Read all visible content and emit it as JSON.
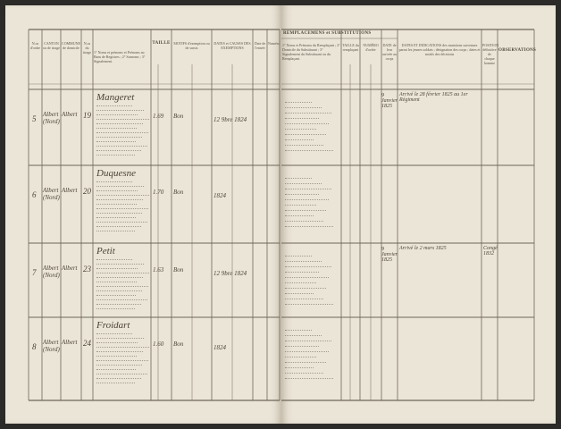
{
  "left_page": {
    "headers": [
      {
        "key": "no",
        "text": "N.os d'ordre"
      },
      {
        "key": "canton",
        "text": "CANTON ou de tirage"
      },
      {
        "key": "commune",
        "text": "COMMUNE de domicile"
      },
      {
        "key": "tirage",
        "text": "N.os du tirage"
      },
      {
        "key": "noms",
        "text": "1° Noms et prénoms et Prénoms au Bans de Registres ; 2° Surnoms ; 3° Signalement."
      },
      {
        "key": "taille",
        "text": "TAILLE"
      },
      {
        "key": "motifs",
        "text": "MOTIFS d'exemption ou de sursis"
      },
      {
        "key": "dates",
        "text": "DATES et CAUSES DES EXEMPTIONS"
      },
      {
        "key": "c1",
        "text": "Date de l'entrée"
      },
      {
        "key": "c2",
        "text": "Numéro"
      }
    ],
    "rows": [
      {
        "number": "5",
        "canton": "Albert (Nord)",
        "commune": "Albert",
        "tirage": "19",
        "name": "Mangeret",
        "taille": "1.69",
        "motif": "Bon",
        "date": "12 9bre 1824"
      },
      {
        "number": "6",
        "canton": "Albert (Nord)",
        "commune": "Albert",
        "tirage": "20",
        "name": "Duquesne",
        "taille": "1.70",
        "motif": "Bon",
        "date": "1824"
      },
      {
        "number": "7",
        "canton": "Albert (Nord)",
        "commune": "Albert",
        "tirage": "23",
        "name": "Petit",
        "taille": "1.63",
        "motif": "Bon",
        "date": "12 9bre 1824"
      },
      {
        "number": "8",
        "canton": "Albert (Nord)",
        "commune": "Albert",
        "tirage": "24",
        "name": "Froidart",
        "taille": "1.60",
        "motif": "Bon",
        "date": "1824"
      }
    ]
  },
  "right_page": {
    "section_title": "REMPLACEMENS et SUBSTITUTIONS",
    "headers": [
      {
        "key": "rempl",
        "text": "1° Noms et Prénoms du Remplaçant ; 2° Domicile du Substituant ; 3° Signalement du Substituant ou du Remplaçant."
      },
      {
        "key": "taille",
        "text": "TAILLE du remplaçant"
      },
      {
        "key": "numero",
        "text": "NUMÉRO d'ordre"
      },
      {
        "key": "date",
        "text": "DATE de leur arrivée au corps"
      },
      {
        "key": "indications",
        "text": "DATES ET INDICATIONS des mutations survenues parmi les jeunes soldats ; désignation des corps ; dates et motifs des décisions"
      },
      {
        "key": "position",
        "text": "POSITION définitive de chaque homme"
      },
      {
        "key": "observations",
        "text": "OBSERVATIONS"
      }
    ],
    "rows": [
      {
        "date": "9 Janvier 1825",
        "indication": "Arrivé le 28 février 1825 au 1er Régiment"
      },
      {
        "date": "",
        "indication": ""
      },
      {
        "date": "9 Janvier 1825",
        "indication": "Arrivé le 2 mars 1825",
        "position": "Congé 1832"
      },
      {
        "date": "",
        "indication": ""
      }
    ]
  }
}
